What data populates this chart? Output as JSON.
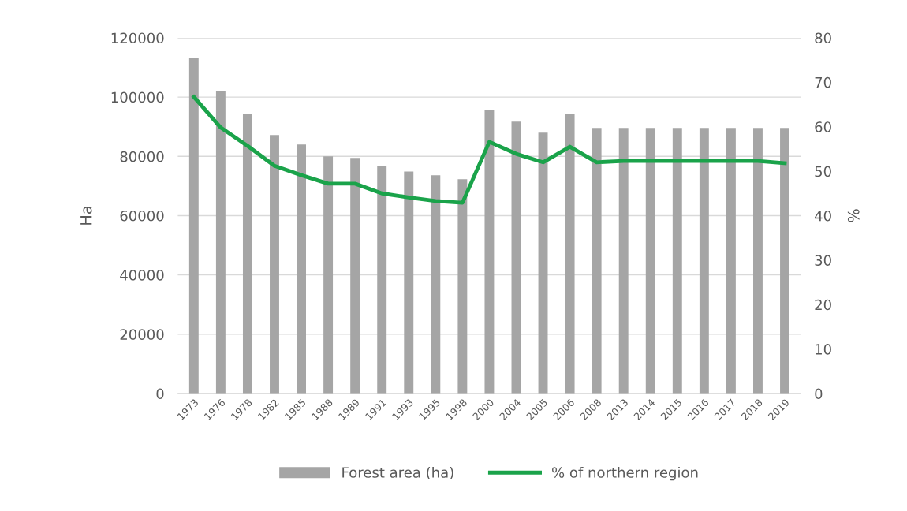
{
  "chart_data": {
    "type": "bar",
    "categories": [
      "1973",
      "1976",
      "1978",
      "1982",
      "1985",
      "1988",
      "1989",
      "1991",
      "1993",
      "1995",
      "1998",
      "2000",
      "2004",
      "2005",
      "2006",
      "2008",
      "2013",
      "2014",
      "2015",
      "2016",
      "2017",
      "2018",
      "2019"
    ],
    "series": [
      {
        "name": "Forest area (ha)",
        "color": "#a5a5a5",
        "values": [
          113300,
          102100,
          94400,
          87200,
          84000,
          80000,
          79500,
          76800,
          74900,
          73600,
          72300,
          95700,
          91700,
          88000,
          94400,
          89600,
          89600,
          89600,
          89600,
          89600,
          89600,
          89600,
          89600
        ]
      },
      {
        "name": "% of northern region",
        "type": "line",
        "axis": "y2",
        "color": "#1aa34a",
        "values": [
          66.7,
          59.8,
          55.7,
          51.2,
          49.1,
          47.2,
          47.2,
          45.0,
          44.1,
          43.3,
          42.9,
          56.6,
          53.9,
          52.0,
          55.5,
          52.0,
          52.3,
          52.3,
          52.3,
          52.3,
          52.3,
          52.3,
          51.8
        ]
      }
    ],
    "ylabel": "Ha",
    "y2label": "%",
    "ylim": [
      0,
      120000
    ],
    "yticks": [
      0,
      20000,
      40000,
      60000,
      80000,
      100000,
      120000
    ],
    "y2lim": [
      0,
      80
    ],
    "y2ticks": [
      0,
      10,
      20,
      30,
      40,
      50,
      60,
      70,
      80
    ],
    "grid": "y",
    "legend": "bottom"
  }
}
